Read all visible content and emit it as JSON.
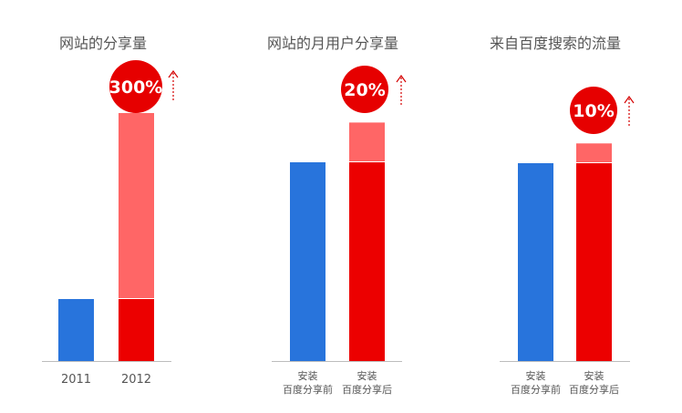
{
  "colors": {
    "before": "#2874dc",
    "after": "#ec0000",
    "increase": "#ff6666",
    "badge": "#e60000",
    "axis": "#bdbdbd",
    "title": "#555555",
    "label": "#555555",
    "arrow": "#d40000"
  },
  "chart_data": [
    {
      "type": "bar",
      "title": "网站的分享量",
      "categories": [
        [
          "2011"
        ],
        [
          "2012"
        ]
      ],
      "values": [
        1,
        4
      ],
      "increase_pct": 300,
      "badge_label": "300%",
      "arrow_icon": "up-arrow-icon"
    },
    {
      "type": "bar",
      "title": "网站的月用户分享量",
      "categories": [
        [
          "安装",
          "百度分享前"
        ],
        [
          "安装",
          "百度分享后"
        ]
      ],
      "values": [
        1,
        1.2
      ],
      "increase_pct": 20,
      "badge_label": "20%",
      "arrow_icon": "up-arrow-icon"
    },
    {
      "type": "bar",
      "title": "来自百度搜索的流量",
      "categories": [
        [
          "安装",
          "百度分享前"
        ],
        [
          "安装",
          "百度分享后"
        ]
      ],
      "values": [
        1,
        1.1
      ],
      "increase_pct": 10,
      "badge_label": "10%",
      "arrow_icon": "up-arrow-icon"
    }
  ]
}
